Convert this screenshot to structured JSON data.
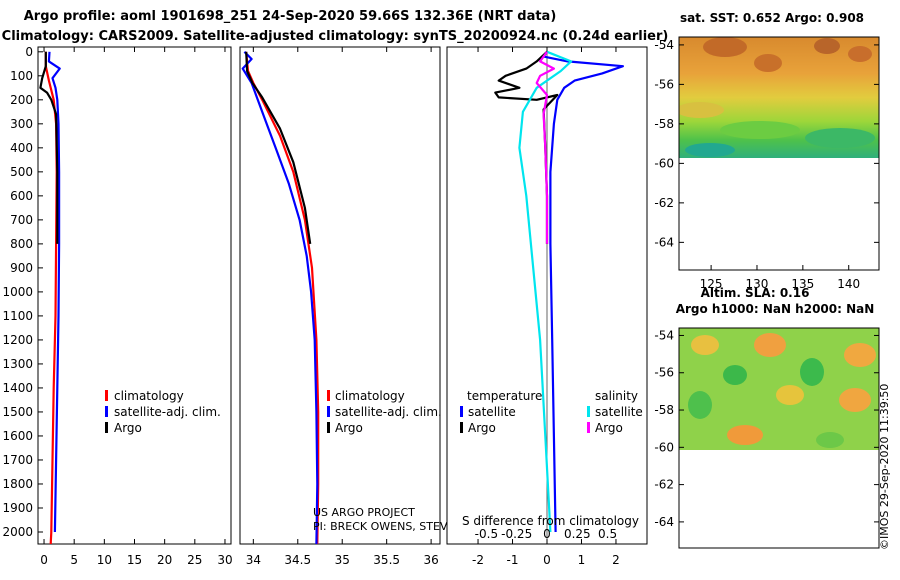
{
  "title_line1": "Argo profile: aoml 1901698_251 24-Sep-2020 59.66S 132.36E (NRT data)",
  "title_line2": "Climatology: CARS2009. Satellite-adjusted climatology: synTS_20200924.nc (0.24d earlier)",
  "credit_line1": "US ARGO PROJECT",
  "credit_line2": "PI: BRECK OWENS, STEVE JAYNE, AND P.E. ROBBINS",
  "watermark": "©IMOS 29-Sep-2020 11:39:50",
  "colors": {
    "climatology": "#ff0000",
    "satellite": "#0000ff",
    "argo": "#000000",
    "diff_temp_sat": "#0000ff",
    "diff_temp_argo": "#000000",
    "diff_sal_sat": "#00e5ee",
    "diff_sal_argo": "#ff00ff"
  },
  "chart_data": [
    {
      "type": "line",
      "name": "temperature-profile",
      "xlim": [
        -1,
        31
      ],
      "ylim": [
        2050,
        -20
      ],
      "x_ticks": [
        "0",
        "5",
        "10",
        "15",
        "20",
        "25",
        "30"
      ],
      "x_tick_values": [
        0,
        5,
        10,
        15,
        20,
        25,
        30
      ],
      "y_ticks": [
        "0",
        "100",
        "200",
        "300",
        "400",
        "500",
        "600",
        "700",
        "800",
        "900",
        "1000",
        "1100",
        "1200",
        "1300",
        "1400",
        "1500",
        "1600",
        "1700",
        "1800",
        "1900",
        "2000"
      ],
      "y_tick_values": [
        0,
        100,
        200,
        300,
        400,
        500,
        600,
        700,
        800,
        900,
        1000,
        1100,
        1200,
        1300,
        1400,
        1500,
        1600,
        1700,
        1800,
        1900,
        2000
      ],
      "legend": [
        "climatology",
        "satellite-adj. clim.",
        "Argo"
      ],
      "series": [
        {
          "name": "climatology",
          "color": "#ff0000",
          "points": [
            [
              0.3,
              0
            ],
            [
              0.3,
              60
            ],
            [
              0.8,
              120
            ],
            [
              1.6,
              200
            ],
            [
              2.0,
              300
            ],
            [
              2.1,
              500
            ],
            [
              2.0,
              800
            ],
            [
              1.9,
              1100
            ],
            [
              1.6,
              1400
            ],
            [
              1.4,
              1700
            ],
            [
              1.2,
              2000
            ],
            [
              1.1,
              2050
            ]
          ]
        },
        {
          "name": "satellite-adj. clim.",
          "color": "#0000ff",
          "points": [
            [
              0.9,
              0
            ],
            [
              0.8,
              40
            ],
            [
              2.6,
              70
            ],
            [
              1.4,
              110
            ],
            [
              1.9,
              150
            ],
            [
              2.2,
              200
            ],
            [
              2.4,
              300
            ],
            [
              2.5,
              500
            ],
            [
              2.5,
              800
            ],
            [
              2.4,
              1100
            ],
            [
              2.2,
              1400
            ],
            [
              2.0,
              1700
            ],
            [
              1.8,
              2000
            ]
          ]
        },
        {
          "name": "Argo",
          "color": "#000000",
          "points": [
            [
              0.3,
              0
            ],
            [
              0.3,
              60
            ],
            [
              -0.3,
              110
            ],
            [
              -0.6,
              150
            ],
            [
              0.5,
              170
            ],
            [
              1.2,
              200
            ],
            [
              2.0,
              260
            ],
            [
              2.2,
              500
            ],
            [
              2.2,
              800
            ]
          ]
        }
      ]
    },
    {
      "type": "line",
      "name": "salinity-profile",
      "xlim": [
        33.85,
        36.1
      ],
      "ylim": [
        2050,
        -20
      ],
      "x_ticks": [
        "34",
        "34.5",
        "35",
        "35.5",
        "36"
      ],
      "x_tick_values": [
        34,
        34.5,
        35,
        35.5,
        36
      ],
      "legend": [
        "climatology",
        "satellite-adj. clim.",
        "Argo"
      ],
      "series": [
        {
          "name": "climatology",
          "color": "#ff0000",
          "points": [
            [
              33.92,
              0
            ],
            [
              33.94,
              80
            ],
            [
              34.0,
              130
            ],
            [
              34.1,
              200
            ],
            [
              34.3,
              350
            ],
            [
              34.45,
              500
            ],
            [
              34.58,
              700
            ],
            [
              34.66,
              900
            ],
            [
              34.71,
              1200
            ],
            [
              34.73,
              1500
            ],
            [
              34.73,
              1800
            ],
            [
              34.72,
              2050
            ]
          ]
        },
        {
          "name": "satellite-adj. clim.",
          "color": "#0000ff",
          "points": [
            [
              33.9,
              0
            ],
            [
              33.98,
              30
            ],
            [
              33.88,
              70
            ],
            [
              33.98,
              130
            ],
            [
              34.1,
              250
            ],
            [
              34.25,
              400
            ],
            [
              34.4,
              550
            ],
            [
              34.52,
              700
            ],
            [
              34.6,
              850
            ],
            [
              34.65,
              1000
            ],
            [
              34.69,
              1200
            ],
            [
              34.71,
              1500
            ],
            [
              34.72,
              1800
            ],
            [
              34.71,
              2050
            ]
          ]
        },
        {
          "name": "Argo",
          "color": "#000000",
          "points": [
            [
              33.92,
              0
            ],
            [
              33.93,
              80
            ],
            [
              33.99,
              130
            ],
            [
              34.1,
              190
            ],
            [
              34.3,
              320
            ],
            [
              34.45,
              460
            ],
            [
              34.58,
              650
            ],
            [
              34.64,
              800
            ]
          ]
        }
      ]
    },
    {
      "type": "line",
      "name": "difference-profile",
      "title": "S difference from climatology",
      "xlim": [
        -2.9,
        2.9
      ],
      "ylim": [
        2050,
        -20
      ],
      "x_ticks": [
        "-2",
        "-1",
        "0",
        "1",
        "2"
      ],
      "x_tick_values": [
        -2,
        -1,
        0,
        1,
        2
      ],
      "x2_ticks": [
        "-0.5",
        "-0.25",
        "0",
        "0.25",
        "0.5"
      ],
      "legend_headers": [
        "temperature",
        "salinity"
      ],
      "legend": [
        "satellite",
        "Argo",
        "satellite",
        "Argo"
      ],
      "series": [
        {
          "name": "temperature satellite",
          "color": "#0000ff",
          "points": [
            [
              0,
              0
            ],
            [
              -0.1,
              20
            ],
            [
              0.6,
              40
            ],
            [
              2.2,
              60
            ],
            [
              1.6,
              90
            ],
            [
              0.8,
              120
            ],
            [
              0.5,
              150
            ],
            [
              0.3,
              200
            ],
            [
              0.2,
              300
            ],
            [
              0.1,
              500
            ],
            [
              0.1,
              800
            ],
            [
              0.15,
              1200
            ],
            [
              0.2,
              1600
            ],
            [
              0.25,
              2000
            ]
          ]
        },
        {
          "name": "temperature Argo",
          "color": "#000000",
          "points": [
            [
              0,
              0
            ],
            [
              -0.3,
              40
            ],
            [
              -0.6,
              70
            ],
            [
              -1.2,
              100
            ],
            [
              -1.4,
              120
            ],
            [
              -0.8,
              150
            ],
            [
              -1.5,
              170
            ],
            [
              -1.4,
              190
            ],
            [
              -0.3,
              200
            ],
            [
              0.3,
              180
            ],
            [
              -0.1,
              240
            ],
            [
              -0.05,
              400
            ],
            [
              0,
              600
            ],
            [
              0,
              800
            ]
          ]
        },
        {
          "name": "salinity satellite",
          "color": "#00e5ee",
          "points": [
            [
              0,
              0
            ],
            [
              0.7,
              40
            ],
            [
              0.4,
              80
            ],
            [
              -0.3,
              150
            ],
            [
              -0.7,
              250
            ],
            [
              -0.8,
              400
            ],
            [
              -0.6,
              600
            ],
            [
              -0.4,
              900
            ],
            [
              -0.2,
              1200
            ],
            [
              -0.05,
              1600
            ],
            [
              0.1,
              2000
            ]
          ]
        },
        {
          "name": "salinity Argo",
          "color": "#ff00ff",
          "points": [
            [
              0,
              0
            ],
            [
              -0.2,
              40
            ],
            [
              0.2,
              70
            ],
            [
              -0.2,
              100
            ],
            [
              -0.3,
              130
            ],
            [
              0,
              180
            ],
            [
              -0.1,
              260
            ],
            [
              -0.05,
              400
            ],
            [
              0,
              600
            ],
            [
              0,
              800
            ]
          ]
        }
      ]
    },
    {
      "type": "heatmap",
      "name": "sst-map",
      "title": "sat. SST: 0.652 Argo: 0.908",
      "x_ticks": [
        "125",
        "130",
        "135",
        "140"
      ],
      "y_ticks": [
        "-54",
        "-56",
        "-58",
        "-60",
        "-62",
        "-64"
      ],
      "xlim": [
        121.5,
        143.3
      ],
      "ylim": [
        -65.4,
        -53.6
      ],
      "data_lat_min": -60
    },
    {
      "type": "heatmap",
      "name": "sla-map",
      "title": "Altim. SLA: 0.16",
      "subtitle": "Argo h1000: NaN h2000: NaN",
      "y_ticks": [
        "-54",
        "-56",
        "-58",
        "-60",
        "-62",
        "-64"
      ],
      "xlim": [
        121.5,
        143.3
      ],
      "ylim": [
        -65.4,
        -53.6
      ],
      "data_lat_min": -60
    }
  ]
}
